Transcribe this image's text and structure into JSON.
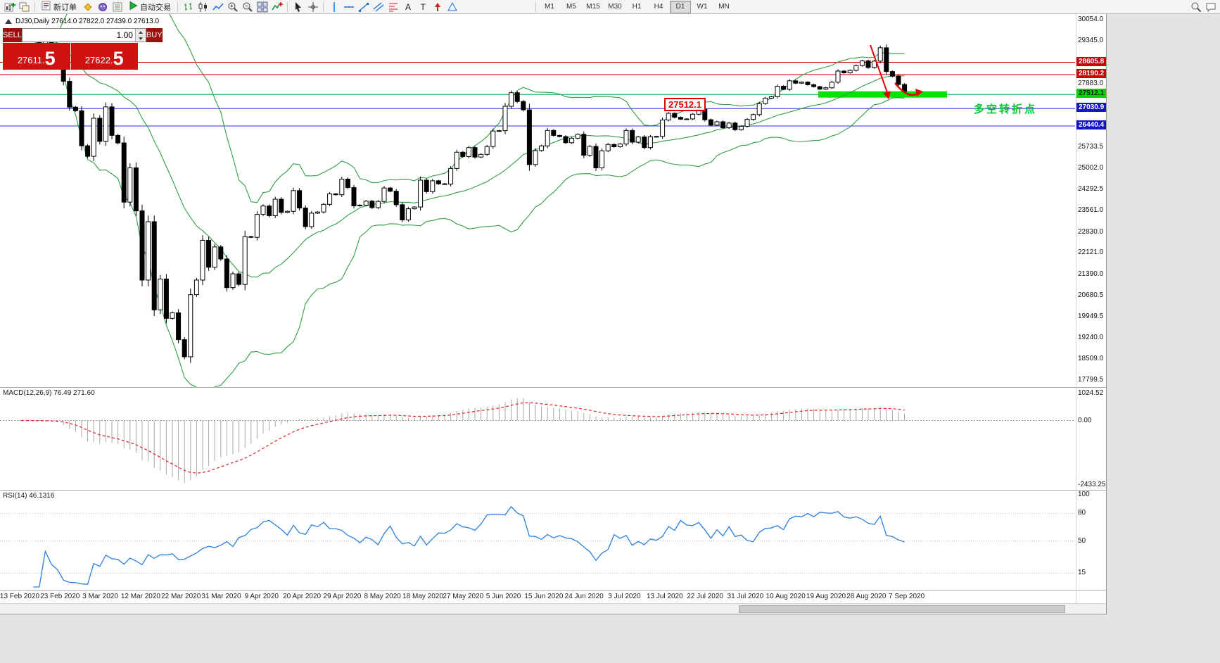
{
  "toolbar": {
    "new_order_label": "新订单",
    "auto_trading_label": "自动交易",
    "text_tool_glyph": "A",
    "label_tool_glyph": "T",
    "timeframes": [
      "M1",
      "M5",
      "M15",
      "M30",
      "H1",
      "H4",
      "D1",
      "W1",
      "MN"
    ],
    "active_timeframe": "D1"
  },
  "one_click": {
    "sell_label": "SELL",
    "buy_label": "BUY",
    "volume": "1.00",
    "sell_price_main": "27611.",
    "sell_price_big": "5",
    "buy_price_main": "27622.",
    "buy_price_big": "5"
  },
  "chart_header": {
    "title": "DJ30,Daily  27614.0 27822.0 27439.0 27613.0"
  },
  "price_axis": {
    "labels": [
      "30054.0",
      "29345.0",
      "27883.0",
      "25733.5",
      "25002.0",
      "24292.5",
      "23561.0",
      "22830.0",
      "22121.0",
      "21390.0",
      "20680.5",
      "19949.5",
      "19240.0",
      "18509.0",
      "17799.5"
    ],
    "badges": [
      {
        "text": "28605.8",
        "bg": "#c80000",
        "fg": "#ffffff"
      },
      {
        "text": "28190.2",
        "bg": "#c80000",
        "fg": "#ffffff"
      },
      {
        "text": "27512.1",
        "bg": "#00d400",
        "fg": "#002b00"
      },
      {
        "text": "27030.9",
        "bg": "#1414c8",
        "fg": "#ffffff"
      },
      {
        "text": "26440.4",
        "bg": "#1414c8",
        "fg": "#ffffff"
      }
    ]
  },
  "levels": [
    {
      "price": 28605.8,
      "color": "#d40000"
    },
    {
      "price": 28190.2,
      "color": "#d40000"
    },
    {
      "price": 27512.1,
      "color": "#00aa44"
    },
    {
      "price": 27030.9,
      "color": "#3030d0"
    },
    {
      "price": 26440.4,
      "color": "#3030d0"
    }
  ],
  "annotations": {
    "price_callout": "27512.1",
    "turning_point_label": "多空转折点",
    "highlight_price": 27512.1,
    "highlight_color": "#00e400",
    "arrow_color": "#e60000"
  },
  "macd_panel": {
    "label": "MACD(12,26,9) 76.49 271.60",
    "scale": [
      "1024.52",
      "0.00",
      "-2433.25"
    ]
  },
  "rsi_panel": {
    "label": "RSI(14) 46.1316",
    "scale": [
      "100",
      "80",
      "50",
      "15"
    ]
  },
  "x_axis": {
    "dates": [
      "13 Feb 2020",
      "23 Feb 2020",
      "3 Mar 2020",
      "12 Mar 2020",
      "22 Mar 2020",
      "31 Mar 2020",
      "9 Apr 2020",
      "20 Apr 2020",
      "29 Apr 2020",
      "8 May 2020",
      "18 May 2020",
      "27 May 2020",
      "5 Jun 2020",
      "15 Jun 2020",
      "24 Jun 2020",
      "3 Jul 2020",
      "13 Jul 2020",
      "22 Jul 2020",
      "31 Jul 2020",
      "10 Aug 2020",
      "19 Aug 2020",
      "28 Aug 2020",
      "7 Sep 2020"
    ]
  },
  "chart_data": {
    "type": "candlestick",
    "symbol": "DJ30",
    "period": "Daily",
    "open": 27614.0,
    "high": 27822.0,
    "low": 27439.0,
    "close": 27613.0,
    "bid": 27611.5,
    "ask": 27622.5,
    "ylim": [
      17799.5,
      30054.0
    ],
    "overlays": [
      {
        "name": "Bollinger Bands",
        "color": "#2f9e44"
      }
    ],
    "sub_indicators": [
      {
        "name": "MACD",
        "params": "12,26,9",
        "values": [
          76.49,
          271.6
        ],
        "range": [
          -2433.25,
          1024.52
        ]
      },
      {
        "name": "RSI",
        "params": "14",
        "value": 46.1316,
        "range": [
          0,
          100
        ]
      }
    ],
    "closes": [
      29423,
      29398,
      29348,
      29219,
      29348,
      29160,
      28992,
      27960,
      27081,
      26957,
      25766,
      25409,
      26703,
      25917,
      27090,
      26121,
      25864,
      23851,
      25018,
      23553,
      21200,
      23185,
      20188,
      21237,
      19898,
      20087,
      19173,
      18591,
      20704,
      21200,
      22552,
      21636,
      22327,
      21917,
      20943,
      21413,
      21052,
      22679,
      22653,
      23433,
      23719,
      23390,
      23949,
      23504,
      23537,
      24242,
      23650,
      23018,
      23475,
      23515,
      23775,
      24133,
      24101,
      24633,
      24345,
      23723,
      23749,
      23883,
      23664,
      23875,
      24331,
      24221,
      23764,
      23247,
      23625,
      23685,
      24597,
      24206,
      24575,
      24474,
      24465,
      24995,
      25548,
      25400,
      25705,
      25383,
      25475,
      25742,
      26269,
      26281,
      27110,
      27572,
      27272,
      26989,
      25128,
      25605,
      25763,
      26289,
      26119,
      26080,
      25871,
      26024,
      26156,
      25445,
      25745,
      25015,
      25595,
      25812,
      25734,
      25827,
      26287,
      25890,
      26067,
      25706,
      26075,
      26085,
      26642,
      26870,
      26734,
      26671,
      26680,
      26840,
      27005,
      26652,
      26469,
      26584,
      26379,
      26539,
      26313,
      26428,
      26664,
      26828,
      27201,
      27387,
      27433,
      27791,
      27686,
      27976,
      27896,
      27931,
      27844,
      27778,
      27692,
      27739,
      27930,
      28308,
      28248,
      28331,
      28492,
      28653,
      28430,
      28645,
      29100,
      28292,
      28133,
      27850,
      27613
    ]
  }
}
